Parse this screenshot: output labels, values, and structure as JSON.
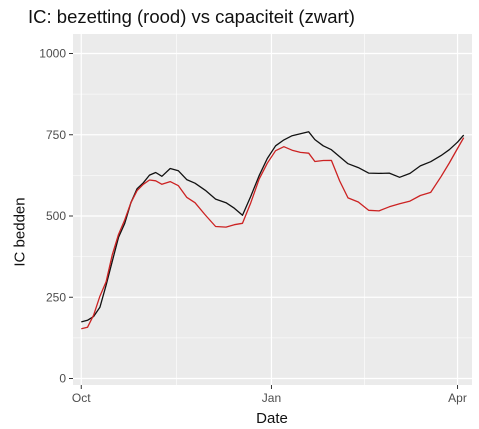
{
  "chart_data": {
    "type": "line",
    "title": "IC: bezetting (rood) vs capaciteit (zwart)",
    "xlabel": "Date",
    "ylabel": "IC bedden",
    "x_ticks": [
      "Oct",
      "Jan",
      "Apr"
    ],
    "y_ticks": [
      0,
      250,
      500,
      750,
      1000
    ],
    "ylim": [
      -20,
      1060
    ],
    "xlim": [
      "2020-09-27",
      "2021-04-08"
    ],
    "grid": true,
    "legend": "none",
    "colors": {
      "panel": "#ebebeb",
      "grid": "#ffffff",
      "bezetting": "#cc2222",
      "capaciteit": "#111111"
    },
    "series": [
      {
        "color": "#111111",
        "points": [
          [
            "2020-10-01",
            170
          ],
          [
            "2020-10-04",
            182
          ],
          [
            "2020-10-07",
            190
          ],
          [
            "2020-10-10",
            215
          ],
          [
            "2020-10-13",
            290
          ],
          [
            "2020-10-16",
            360
          ],
          [
            "2020-10-19",
            430
          ],
          [
            "2020-10-22",
            480
          ],
          [
            "2020-10-25",
            540
          ],
          [
            "2020-10-28",
            580
          ],
          [
            "2020-10-31",
            605
          ],
          [
            "2020-11-03",
            625
          ],
          [
            "2020-11-06",
            630
          ],
          [
            "2020-11-09",
            625
          ],
          [
            "2020-11-13",
            645
          ],
          [
            "2020-11-17",
            635
          ],
          [
            "2020-11-21",
            615
          ],
          [
            "2020-11-25",
            600
          ],
          [
            "2020-11-30",
            575
          ],
          [
            "2020-12-05",
            555
          ],
          [
            "2020-12-10",
            540
          ],
          [
            "2020-12-14",
            520
          ],
          [
            "2020-12-18",
            505
          ],
          [
            "2020-12-22",
            560
          ],
          [
            "2020-12-26",
            620
          ],
          [
            "2020-12-30",
            680
          ],
          [
            "2021-01-03",
            715
          ],
          [
            "2021-01-07",
            730
          ],
          [
            "2021-01-11",
            750
          ],
          [
            "2021-01-15",
            752
          ],
          [
            "2021-01-19",
            755
          ],
          [
            "2021-01-22",
            738
          ],
          [
            "2021-01-26",
            715
          ],
          [
            "2021-01-30",
            700
          ],
          [
            "2021-02-03",
            685
          ],
          [
            "2021-02-07",
            660
          ],
          [
            "2021-02-12",
            645
          ],
          [
            "2021-02-17",
            635
          ],
          [
            "2021-02-22",
            630
          ],
          [
            "2021-02-27",
            628
          ],
          [
            "2021-03-04",
            622
          ],
          [
            "2021-03-09",
            630
          ],
          [
            "2021-03-14",
            650
          ],
          [
            "2021-03-19",
            670
          ],
          [
            "2021-03-24",
            685
          ],
          [
            "2021-03-28",
            700
          ],
          [
            "2021-04-01",
            730
          ],
          [
            "2021-04-04",
            748
          ]
        ]
      },
      {
        "color": "#cc2222",
        "points": [
          [
            "2020-10-01",
            150
          ],
          [
            "2020-10-04",
            160
          ],
          [
            "2020-10-07",
            195
          ],
          [
            "2020-10-10",
            250
          ],
          [
            "2020-10-13",
            300
          ],
          [
            "2020-10-16",
            380
          ],
          [
            "2020-10-19",
            440
          ],
          [
            "2020-10-22",
            490
          ],
          [
            "2020-10-25",
            540
          ],
          [
            "2020-10-28",
            575
          ],
          [
            "2020-10-31",
            600
          ],
          [
            "2020-11-03",
            610
          ],
          [
            "2020-11-06",
            605
          ],
          [
            "2020-11-09",
            600
          ],
          [
            "2020-11-13",
            605
          ],
          [
            "2020-11-17",
            590
          ],
          [
            "2020-11-21",
            560
          ],
          [
            "2020-11-25",
            540
          ],
          [
            "2020-11-30",
            500
          ],
          [
            "2020-12-05",
            470
          ],
          [
            "2020-12-10",
            465
          ],
          [
            "2020-12-14",
            470
          ],
          [
            "2020-12-18",
            480
          ],
          [
            "2020-12-22",
            540
          ],
          [
            "2020-12-26",
            610
          ],
          [
            "2020-12-30",
            665
          ],
          [
            "2021-01-03",
            700
          ],
          [
            "2021-01-07",
            710
          ],
          [
            "2021-01-11",
            705
          ],
          [
            "2021-01-15",
            695
          ],
          [
            "2021-01-19",
            690
          ],
          [
            "2021-01-22",
            670
          ],
          [
            "2021-01-26",
            670
          ],
          [
            "2021-01-30",
            668
          ],
          [
            "2021-02-03",
            610
          ],
          [
            "2021-02-07",
            555
          ],
          [
            "2021-02-12",
            540
          ],
          [
            "2021-02-17",
            520
          ],
          [
            "2021-02-22",
            515
          ],
          [
            "2021-02-27",
            525
          ],
          [
            "2021-03-04",
            540
          ],
          [
            "2021-03-09",
            545
          ],
          [
            "2021-03-14",
            560
          ],
          [
            "2021-03-19",
            575
          ],
          [
            "2021-03-24",
            620
          ],
          [
            "2021-03-28",
            660
          ],
          [
            "2021-04-01",
            710
          ],
          [
            "2021-04-04",
            740
          ]
        ]
      }
    ]
  }
}
